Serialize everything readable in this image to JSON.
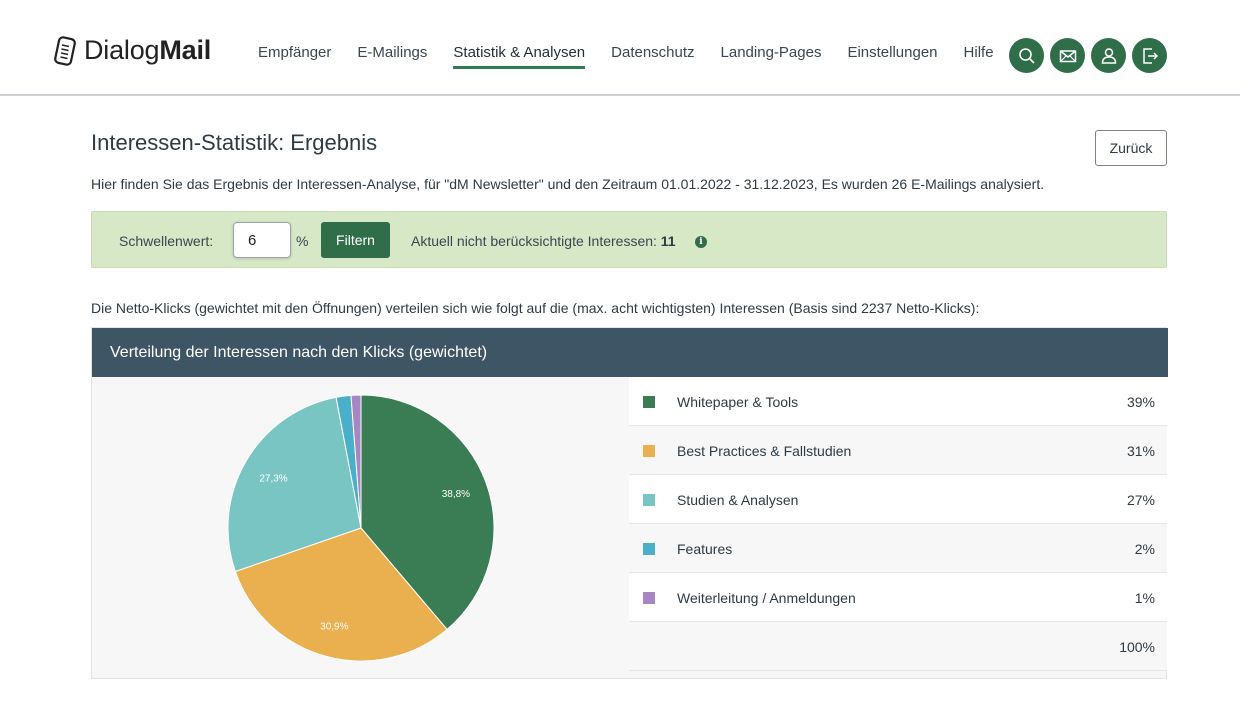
{
  "header": {
    "logo_light": "Dialog",
    "logo_bold": "Mail",
    "nav": [
      {
        "label": "Empfänger"
      },
      {
        "label": "E-Mailings"
      },
      {
        "label": "Statistik & Analysen",
        "active": true
      },
      {
        "label": "Datenschutz"
      },
      {
        "label": "Landing-Pages"
      },
      {
        "label": "Einstellungen"
      },
      {
        "label": "Hilfe"
      }
    ],
    "icons": [
      "search-icon",
      "mail-icon",
      "user-icon",
      "logout-icon"
    ],
    "accent_color": "#2f6e49"
  },
  "page": {
    "title": "Interessen-Statistik: Ergebnis",
    "back_label": "Zurück",
    "intro": "Hier finden Sie das Ergebnis der Interessen-Analyse, für \"dM Newsletter\" und den Zeitraum 01.01.2022 - 31.12.2023, Es wurden 26 E-Mailings analysiert."
  },
  "filter": {
    "label": "Schwellenwert:",
    "value": "6",
    "unit": "%",
    "button_label": "Filtern",
    "info_text": "Aktuell nicht berücksichtigte Interessen:",
    "info_count": "11"
  },
  "basis_text": "Die Netto-Klicks (gewichtet mit den Öffnungen) verteilen sich wie folgt auf die (max. acht wichtigsten) Interessen (Basis sind 2237 Netto-Klicks):",
  "panel_title": "Verteilung der Interessen nach den Klicks (gewichtet)",
  "chart_data": {
    "type": "pie",
    "slices": [
      {
        "label": "Whitepaper & Tools",
        "value": 38.8,
        "display": "39%",
        "data_label": "38,8%",
        "color": "#3a7d54"
      },
      {
        "label": "Best Practices & Fallstudien",
        "value": 30.9,
        "display": "31%",
        "data_label": "30,9%",
        "color": "#eaaf4e"
      },
      {
        "label": "Studien & Analysen",
        "value": 27.3,
        "display": "27%",
        "data_label": "27,3%",
        "color": "#79c5c3"
      },
      {
        "label": "Features",
        "value": 1.8,
        "display": "2%",
        "data_label": "",
        "color": "#4aafc9"
      },
      {
        "label": "Weiterleitung / Anmeldungen",
        "value": 1.2,
        "display": "1%",
        "data_label": "",
        "color": "#a885c4"
      }
    ],
    "total": "100%"
  }
}
